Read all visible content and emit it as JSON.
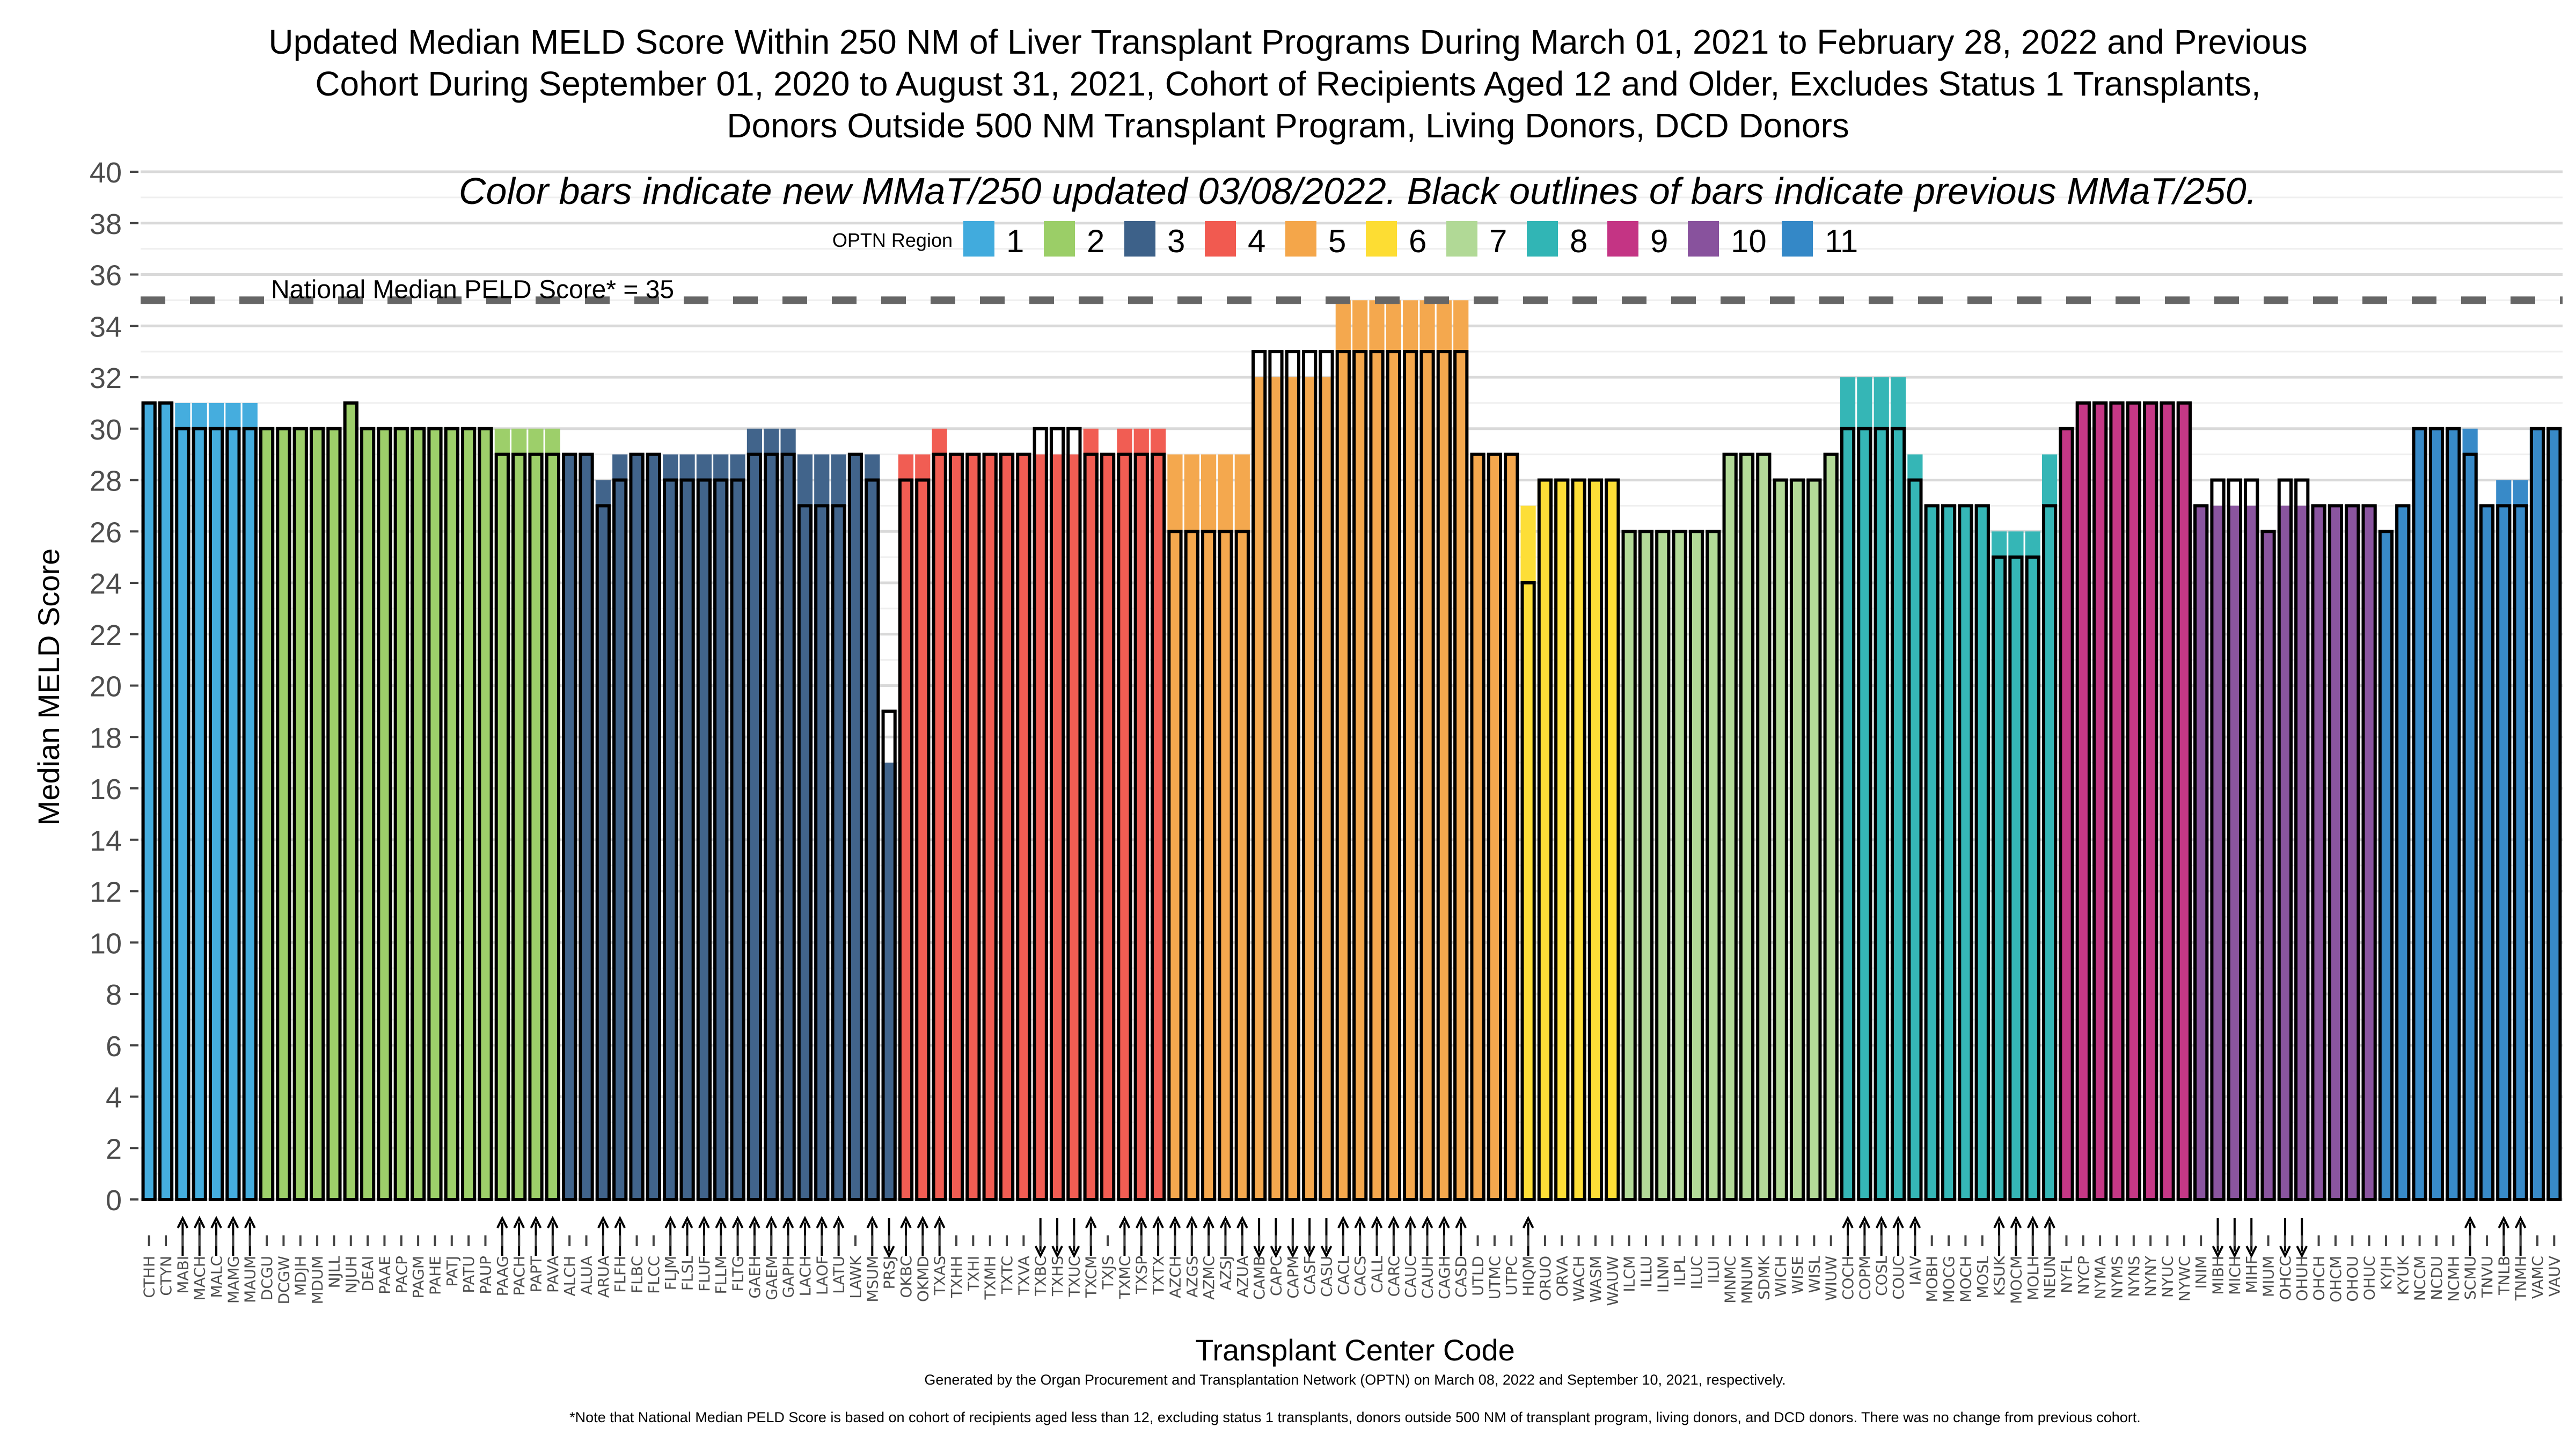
{
  "chart_data": {
    "type": "bar",
    "title": [
      "Updated Median MELD Score Within 250 NM of Liver Transplant Programs During March 01, 2021 to February 28, 2022 and Previous",
      "Cohort During September 01, 2020 to August 31, 2021, Cohort of Recipients Aged 12 and Older, Excludes Status 1 Transplants,",
      "Donors Outside 500 NM Transplant Program, Living Donors, DCD Donors"
    ],
    "subtitle": "Color bars indicate new MMaT/250 updated 03/08/2022. Black outlines of bars indicate previous MMaT/250.",
    "xlabel": "Transplant Center Code",
    "ylabel": "Median MELD Score",
    "ylim": [
      0,
      40
    ],
    "yticks": [
      0,
      2,
      4,
      6,
      8,
      10,
      12,
      14,
      16,
      18,
      20,
      22,
      24,
      26,
      28,
      30,
      32,
      34,
      36,
      38,
      40
    ],
    "grid": true,
    "legend": {
      "title": "OPTN Region",
      "placement": "top",
      "entries": [
        {
          "region": 1,
          "label": "1",
          "color": "#41ABDD"
        },
        {
          "region": 2,
          "label": "2",
          "color": "#9BCE67"
        },
        {
          "region": 3,
          "label": "3",
          "color": "#3D6189"
        },
        {
          "region": 4,
          "label": "4",
          "color": "#F15A50"
        },
        {
          "region": 5,
          "label": "5",
          "color": "#F4A64A"
        },
        {
          "region": 6,
          "label": "6",
          "color": "#FDDD33"
        },
        {
          "region": 7,
          "label": "7",
          "color": "#B1D996"
        },
        {
          "region": 8,
          "label": "8",
          "color": "#31B5B5"
        },
        {
          "region": 9,
          "label": "9",
          "color": "#C43484"
        },
        {
          "region": 10,
          "label": "10",
          "color": "#88529D"
        },
        {
          "region": 11,
          "label": "11",
          "color": "#3488C7"
        }
      ]
    },
    "reference_line": {
      "value": 35,
      "label": "National Median PELD Score* = 35",
      "style": "dashed",
      "color": "#666666"
    },
    "series": [
      {
        "name": "new MMaT/250 (updated 03/08/2022)",
        "rendering": "color fill"
      },
      {
        "name": "previous MMaT/250",
        "rendering": "black outline"
      }
    ],
    "bars": [
      {
        "code": "CTHH",
        "region": 1,
        "new": 31,
        "prev": 31
      },
      {
        "code": "CTYN",
        "region": 1,
        "new": 31,
        "prev": 31
      },
      {
        "code": "MABI",
        "region": 1,
        "new": 31,
        "prev": 30
      },
      {
        "code": "MACH",
        "region": 1,
        "new": 31,
        "prev": 30
      },
      {
        "code": "MALC",
        "region": 1,
        "new": 31,
        "prev": 30
      },
      {
        "code": "MAMG",
        "region": 1,
        "new": 31,
        "prev": 30
      },
      {
        "code": "MAUM",
        "region": 1,
        "new": 31,
        "prev": 30
      },
      {
        "code": "DCGU",
        "region": 2,
        "new": 30,
        "prev": 30
      },
      {
        "code": "DCGW",
        "region": 2,
        "new": 30,
        "prev": 30
      },
      {
        "code": "MDJH",
        "region": 2,
        "new": 30,
        "prev": 30
      },
      {
        "code": "MDUM",
        "region": 2,
        "new": 30,
        "prev": 30
      },
      {
        "code": "NJLL",
        "region": 2,
        "new": 30,
        "prev": 30
      },
      {
        "code": "NJUH",
        "region": 2,
        "new": 31,
        "prev": 31
      },
      {
        "code": "DEAI",
        "region": 2,
        "new": 30,
        "prev": 30
      },
      {
        "code": "PAAE",
        "region": 2,
        "new": 30,
        "prev": 30
      },
      {
        "code": "PACP",
        "region": 2,
        "new": 30,
        "prev": 30
      },
      {
        "code": "PAGM",
        "region": 2,
        "new": 30,
        "prev": 30
      },
      {
        "code": "PAHE",
        "region": 2,
        "new": 30,
        "prev": 30
      },
      {
        "code": "PATJ",
        "region": 2,
        "new": 30,
        "prev": 30
      },
      {
        "code": "PATU",
        "region": 2,
        "new": 30,
        "prev": 30
      },
      {
        "code": "PAUP",
        "region": 2,
        "new": 30,
        "prev": 30
      },
      {
        "code": "PAAG",
        "region": 2,
        "new": 30,
        "prev": 29
      },
      {
        "code": "PACH",
        "region": 2,
        "new": 30,
        "prev": 29
      },
      {
        "code": "PAPT",
        "region": 2,
        "new": 30,
        "prev": 29
      },
      {
        "code": "PAVA",
        "region": 2,
        "new": 30,
        "prev": 29
      },
      {
        "code": "ALCH",
        "region": 3,
        "new": 29,
        "prev": 29
      },
      {
        "code": "ALUA",
        "region": 3,
        "new": 29,
        "prev": 29
      },
      {
        "code": "ARUA",
        "region": 3,
        "new": 28,
        "prev": 27
      },
      {
        "code": "FLFH",
        "region": 3,
        "new": 29,
        "prev": 28
      },
      {
        "code": "FLBC",
        "region": 3,
        "new": 29,
        "prev": 29
      },
      {
        "code": "FLCC",
        "region": 3,
        "new": 29,
        "prev": 29
      },
      {
        "code": "FLJM",
        "region": 3,
        "new": 29,
        "prev": 28
      },
      {
        "code": "FLSL",
        "region": 3,
        "new": 29,
        "prev": 28
      },
      {
        "code": "FLUF",
        "region": 3,
        "new": 29,
        "prev": 28
      },
      {
        "code": "FLLM",
        "region": 3,
        "new": 29,
        "prev": 28
      },
      {
        "code": "FLTG",
        "region": 3,
        "new": 29,
        "prev": 28
      },
      {
        "code": "GAEH",
        "region": 3,
        "new": 30,
        "prev": 29
      },
      {
        "code": "GAEM",
        "region": 3,
        "new": 30,
        "prev": 29
      },
      {
        "code": "GAPH",
        "region": 3,
        "new": 30,
        "prev": 29
      },
      {
        "code": "LACH",
        "region": 3,
        "new": 29,
        "prev": 27
      },
      {
        "code": "LAOF",
        "region": 3,
        "new": 29,
        "prev": 27
      },
      {
        "code": "LATU",
        "region": 3,
        "new": 29,
        "prev": 27
      },
      {
        "code": "LAWK",
        "region": 3,
        "new": 29,
        "prev": 29
      },
      {
        "code": "MSUM",
        "region": 3,
        "new": 29,
        "prev": 28
      },
      {
        "code": "PRSJ",
        "region": 3,
        "new": 17,
        "prev": 19
      },
      {
        "code": "OKBC",
        "region": 4,
        "new": 29,
        "prev": 28
      },
      {
        "code": "OKMD",
        "region": 4,
        "new": 29,
        "prev": 28
      },
      {
        "code": "TXAS",
        "region": 4,
        "new": 30,
        "prev": 29
      },
      {
        "code": "TXHH",
        "region": 4,
        "new": 29,
        "prev": 29
      },
      {
        "code": "TXHI",
        "region": 4,
        "new": 29,
        "prev": 29
      },
      {
        "code": "TXMH",
        "region": 4,
        "new": 29,
        "prev": 29
      },
      {
        "code": "TXTC",
        "region": 4,
        "new": 29,
        "prev": 29
      },
      {
        "code": "TXVA",
        "region": 4,
        "new": 29,
        "prev": 29
      },
      {
        "code": "TXBC",
        "region": 4,
        "new": 29,
        "prev": 30
      },
      {
        "code": "TXHS",
        "region": 4,
        "new": 29,
        "prev": 30
      },
      {
        "code": "TXUC",
        "region": 4,
        "new": 29,
        "prev": 30
      },
      {
        "code": "TXCM",
        "region": 4,
        "new": 30,
        "prev": 29
      },
      {
        "code": "TXJS",
        "region": 4,
        "new": 29,
        "prev": 29
      },
      {
        "code": "TXMC",
        "region": 4,
        "new": 30,
        "prev": 29
      },
      {
        "code": "TXSP",
        "region": 4,
        "new": 30,
        "prev": 29
      },
      {
        "code": "TXTX",
        "region": 4,
        "new": 30,
        "prev": 29
      },
      {
        "code": "AZCH",
        "region": 5,
        "new": 29,
        "prev": 26
      },
      {
        "code": "AZGS",
        "region": 5,
        "new": 29,
        "prev": 26
      },
      {
        "code": "AZMC",
        "region": 5,
        "new": 29,
        "prev": 26
      },
      {
        "code": "AZSJ",
        "region": 5,
        "new": 29,
        "prev": 26
      },
      {
        "code": "AZUA",
        "region": 5,
        "new": 29,
        "prev": 26
      },
      {
        "code": "CAMB",
        "region": 5,
        "new": 32,
        "prev": 33
      },
      {
        "code": "CAPC",
        "region": 5,
        "new": 32,
        "prev": 33
      },
      {
        "code": "CAPM",
        "region": 5,
        "new": 32,
        "prev": 33
      },
      {
        "code": "CASF",
        "region": 5,
        "new": 32,
        "prev": 33
      },
      {
        "code": "CASU",
        "region": 5,
        "new": 32,
        "prev": 33
      },
      {
        "code": "CACL",
        "region": 5,
        "new": 35,
        "prev": 33
      },
      {
        "code": "CACS",
        "region": 5,
        "new": 35,
        "prev": 33
      },
      {
        "code": "CALL",
        "region": 5,
        "new": 35,
        "prev": 33
      },
      {
        "code": "CARC",
        "region": 5,
        "new": 35,
        "prev": 33
      },
      {
        "code": "CAUC",
        "region": 5,
        "new": 35,
        "prev": 33
      },
      {
        "code": "CAUH",
        "region": 5,
        "new": 35,
        "prev": 33
      },
      {
        "code": "CAGH",
        "region": 5,
        "new": 35,
        "prev": 33
      },
      {
        "code": "CASD",
        "region": 5,
        "new": 35,
        "prev": 33
      },
      {
        "code": "UTLD",
        "region": 5,
        "new": 29,
        "prev": 29
      },
      {
        "code": "UTMC",
        "region": 5,
        "new": 29,
        "prev": 29
      },
      {
        "code": "UTPC",
        "region": 5,
        "new": 29,
        "prev": 29
      },
      {
        "code": "HIQM",
        "region": 6,
        "new": 27,
        "prev": 24
      },
      {
        "code": "ORUO",
        "region": 6,
        "new": 28,
        "prev": 28
      },
      {
        "code": "ORVA",
        "region": 6,
        "new": 28,
        "prev": 28
      },
      {
        "code": "WACH",
        "region": 6,
        "new": 28,
        "prev": 28
      },
      {
        "code": "WASM",
        "region": 6,
        "new": 28,
        "prev": 28
      },
      {
        "code": "WAUW",
        "region": 6,
        "new": 28,
        "prev": 28
      },
      {
        "code": "ILCM",
        "region": 7,
        "new": 26,
        "prev": 26
      },
      {
        "code": "ILLU",
        "region": 7,
        "new": 26,
        "prev": 26
      },
      {
        "code": "ILNM",
        "region": 7,
        "new": 26,
        "prev": 26
      },
      {
        "code": "ILPL",
        "region": 7,
        "new": 26,
        "prev": 26
      },
      {
        "code": "ILUC",
        "region": 7,
        "new": 26,
        "prev": 26
      },
      {
        "code": "ILUI",
        "region": 7,
        "new": 26,
        "prev": 26
      },
      {
        "code": "MNMC",
        "region": 7,
        "new": 29,
        "prev": 29
      },
      {
        "code": "MNUM",
        "region": 7,
        "new": 29,
        "prev": 29
      },
      {
        "code": "SDMK",
        "region": 7,
        "new": 29,
        "prev": 29
      },
      {
        "code": "WICH",
        "region": 7,
        "new": 28,
        "prev": 28
      },
      {
        "code": "WISE",
        "region": 7,
        "new": 28,
        "prev": 28
      },
      {
        "code": "WISL",
        "region": 7,
        "new": 28,
        "prev": 28
      },
      {
        "code": "WIUW",
        "region": 7,
        "new": 29,
        "prev": 29
      },
      {
        "code": "COCH",
        "region": 8,
        "new": 32,
        "prev": 30
      },
      {
        "code": "COPM",
        "region": 8,
        "new": 32,
        "prev": 30
      },
      {
        "code": "COSL",
        "region": 8,
        "new": 32,
        "prev": 30
      },
      {
        "code": "COUC",
        "region": 8,
        "new": 32,
        "prev": 30
      },
      {
        "code": "IAIV",
        "region": 8,
        "new": 29,
        "prev": 28
      },
      {
        "code": "MOBH",
        "region": 8,
        "new": 27,
        "prev": 27
      },
      {
        "code": "MOCG",
        "region": 8,
        "new": 27,
        "prev": 27
      },
      {
        "code": "MOCH",
        "region": 8,
        "new": 27,
        "prev": 27
      },
      {
        "code": "MOSL",
        "region": 8,
        "new": 27,
        "prev": 27
      },
      {
        "code": "KSUK",
        "region": 8,
        "new": 26,
        "prev": 25
      },
      {
        "code": "MOCM",
        "region": 8,
        "new": 26,
        "prev": 25
      },
      {
        "code": "MOLH",
        "region": 8,
        "new": 26,
        "prev": 25
      },
      {
        "code": "NEUN",
        "region": 8,
        "new": 29,
        "prev": 27
      },
      {
        "code": "NYFL",
        "region": 9,
        "new": 30,
        "prev": 30
      },
      {
        "code": "NYCP",
        "region": 9,
        "new": 31,
        "prev": 31
      },
      {
        "code": "NYMA",
        "region": 9,
        "new": 31,
        "prev": 31
      },
      {
        "code": "NYMS",
        "region": 9,
        "new": 31,
        "prev": 31
      },
      {
        "code": "NYNS",
        "region": 9,
        "new": 31,
        "prev": 31
      },
      {
        "code": "NYNY",
        "region": 9,
        "new": 31,
        "prev": 31
      },
      {
        "code": "NYUC",
        "region": 9,
        "new": 31,
        "prev": 31
      },
      {
        "code": "NYWC",
        "region": 9,
        "new": 31,
        "prev": 31
      },
      {
        "code": "INIM",
        "region": 10,
        "new": 27,
        "prev": 27
      },
      {
        "code": "MIBH",
        "region": 10,
        "new": 27,
        "prev": 28
      },
      {
        "code": "MICH",
        "region": 10,
        "new": 27,
        "prev": 28
      },
      {
        "code": "MIHF",
        "region": 10,
        "new": 27,
        "prev": 28
      },
      {
        "code": "MIUM",
        "region": 10,
        "new": 26,
        "prev": 26
      },
      {
        "code": "OHCC",
        "region": 10,
        "new": 27,
        "prev": 28
      },
      {
        "code": "OHUH",
        "region": 10,
        "new": 27,
        "prev": 28
      },
      {
        "code": "OHCH",
        "region": 10,
        "new": 27,
        "prev": 27
      },
      {
        "code": "OHCM",
        "region": 10,
        "new": 27,
        "prev": 27
      },
      {
        "code": "OHOU",
        "region": 10,
        "new": 27,
        "prev": 27
      },
      {
        "code": "OHUC",
        "region": 10,
        "new": 27,
        "prev": 27
      },
      {
        "code": "KYJH",
        "region": 11,
        "new": 26,
        "prev": 26
      },
      {
        "code": "KYUK",
        "region": 11,
        "new": 27,
        "prev": 27
      },
      {
        "code": "NCCM",
        "region": 11,
        "new": 30,
        "prev": 30
      },
      {
        "code": "NCDU",
        "region": 11,
        "new": 30,
        "prev": 30
      },
      {
        "code": "NCMH",
        "region": 11,
        "new": 30,
        "prev": 30
      },
      {
        "code": "SCMU",
        "region": 11,
        "new": 30,
        "prev": 29
      },
      {
        "code": "TNVU",
        "region": 11,
        "new": 27,
        "prev": 27
      },
      {
        "code": "TNLB",
        "region": 11,
        "new": 28,
        "prev": 27
      },
      {
        "code": "TNMH",
        "region": 11,
        "new": 28,
        "prev": 27
      },
      {
        "code": "VAMC",
        "region": 11,
        "new": 30,
        "prev": 30
      },
      {
        "code": "VAUV",
        "region": 11,
        "new": 30,
        "prev": 30
      }
    ],
    "footnotes": [
      "Generated by the Organ Procurement and Transplantation Network (OPTN) on March 08, 2022 and September 10, 2021, respectively.",
      "*Note that National Median PELD Score is based on cohort of recipients aged less than 12, excluding status 1 transplants, donors outside 500 NM of transplant program, living donors, and DCD donors. There was no change from previous cohort."
    ],
    "arrow_glyphs": {
      "up": "↑",
      "down": "↓"
    }
  }
}
